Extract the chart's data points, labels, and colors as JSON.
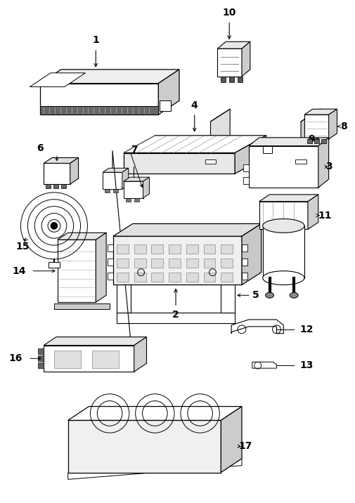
{
  "bg_color": "#ffffff",
  "line_color": "#000000",
  "fig_width": 5.06,
  "fig_height": 7.16,
  "dpi": 100
}
